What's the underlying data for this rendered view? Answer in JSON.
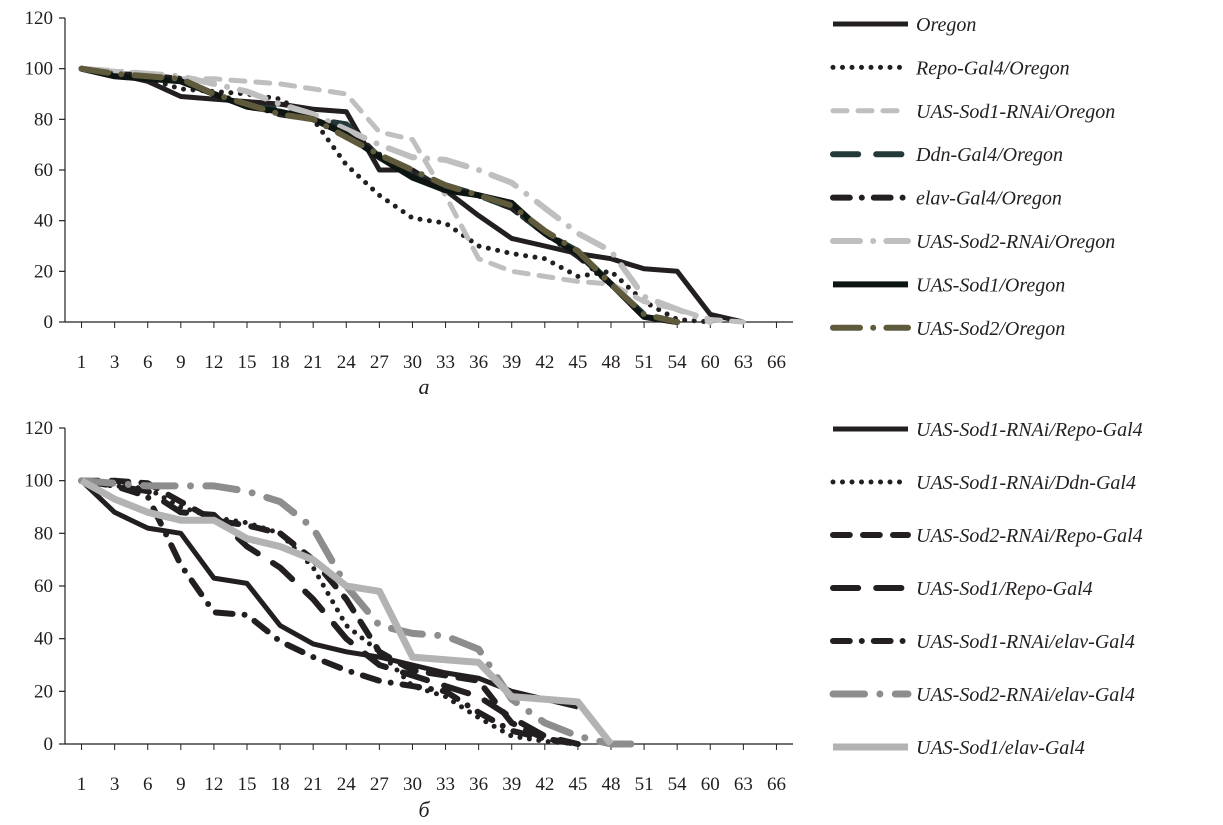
{
  "chart_data": [
    {
      "type": "line",
      "panel_label": "а",
      "x": [
        1,
        3,
        6,
        9,
        12,
        15,
        18,
        21,
        24,
        27,
        30,
        33,
        36,
        39,
        42,
        45,
        48,
        51,
        54,
        60,
        63,
        66
      ],
      "ylim": [
        0,
        120
      ],
      "yticks": [
        0,
        20,
        40,
        60,
        80,
        100,
        120
      ],
      "legend_position": "right",
      "series": [
        {
          "name": "Oregon",
          "color": "#231f20",
          "dash": "solid",
          "width": 5,
          "values": [
            100,
            98,
            95,
            89,
            88,
            87,
            86,
            84,
            83,
            60,
            60,
            52,
            42,
            33,
            30,
            27,
            25,
            21,
            20,
            3,
            0,
            null
          ]
        },
        {
          "name": "Repo-Gal4/Oregon",
          "color": "#231f20",
          "dash": "dot",
          "width": 5,
          "values": [
            100,
            97,
            96,
            92,
            91,
            90,
            88,
            80,
            62,
            50,
            41,
            39,
            30,
            27,
            25,
            18,
            20,
            8,
            1,
            0,
            null,
            null
          ]
        },
        {
          "name": "UAS-Sod1-RNAi/Oregon",
          "color": "#c0bfbf",
          "dash": "dash",
          "width": 5,
          "values": [
            100,
            99,
            98,
            96,
            96,
            95,
            94,
            92,
            90,
            75,
            72,
            50,
            25,
            20,
            18,
            16,
            15,
            8,
            5,
            1,
            0,
            null
          ]
        },
        {
          "name": "Ddn-Gal4/Oregon",
          "color": "#233a3a",
          "dash": "longdash",
          "width": 6,
          "values": [
            100,
            98,
            97,
            95,
            90,
            85,
            84,
            80,
            78,
            65,
            58,
            54,
            50,
            45,
            35,
            28,
            15,
            3,
            0,
            null,
            null,
            null
          ]
        },
        {
          "name": "elav-Gal4/Oregon",
          "color": "#231f20",
          "dash": "dashdot",
          "width": 6,
          "values": [
            100,
            98,
            97,
            96,
            90,
            86,
            82,
            80,
            75,
            66,
            58,
            53,
            50,
            45,
            35,
            26,
            15,
            2,
            0,
            null,
            null,
            null
          ]
        },
        {
          "name": "UAS-Sod2-RNAi/Oregon",
          "color": "#c0bfbf",
          "dash": "longdashdot",
          "width": 6,
          "values": [
            100,
            99,
            98,
            97,
            94,
            91,
            86,
            82,
            76,
            70,
            65,
            64,
            60,
            55,
            45,
            35,
            28,
            10,
            5,
            0,
            null,
            null
          ]
        },
        {
          "name": "UAS-Sod1/Oregon",
          "color": "#0d1512",
          "dash": "solid",
          "width": 6,
          "values": [
            100,
            97,
            96,
            95,
            90,
            85,
            83,
            80,
            74,
            65,
            57,
            52,
            50,
            47,
            35,
            27,
            15,
            2,
            0,
            null,
            null,
            null
          ]
        },
        {
          "name": "UAS-Sod2/Oregon",
          "color": "#5f5a3b",
          "dash": "longdashdot",
          "width": 6,
          "values": [
            100,
            98,
            97,
            96,
            90,
            86,
            82,
            80,
            73,
            66,
            60,
            54,
            50,
            46,
            36,
            28,
            15,
            3,
            0,
            null,
            null,
            null
          ]
        }
      ]
    },
    {
      "type": "line",
      "panel_label": "б",
      "x": [
        1,
        3,
        6,
        9,
        12,
        15,
        18,
        21,
        24,
        27,
        30,
        33,
        36,
        39,
        42,
        45,
        48,
        51,
        54,
        60,
        63,
        66
      ],
      "ylim": [
        0,
        120
      ],
      "yticks": [
        0,
        20,
        40,
        60,
        80,
        100,
        120
      ],
      "legend_position": "right",
      "series": [
        {
          "name": "UAS-Sod1-RNAi/Repo-Gal4",
          "color": "#231f20",
          "dash": "solid",
          "width": 5,
          "values": [
            100,
            88,
            82,
            80,
            63,
            61,
            45,
            38,
            35,
            33,
            30,
            27,
            25,
            20,
            17,
            14,
            null,
            null,
            null,
            null,
            null,
            null
          ]
        },
        {
          "name": "UAS-Sod1-RNAi/Ddn-Gal4",
          "color": "#231f20",
          "dash": "dot",
          "width": 5,
          "values": [
            100,
            98,
            97,
            90,
            86,
            84,
            80,
            67,
            45,
            35,
            22,
            18,
            10,
            3,
            1,
            0,
            null,
            null,
            null,
            null,
            null,
            null
          ]
        },
        {
          "name": "UAS-Sod2-RNAi/Repo-Gal4",
          "color": "#231f20",
          "dash": "dash",
          "width": 6,
          "values": [
            100,
            100,
            99,
            92,
            85,
            83,
            80,
            70,
            55,
            35,
            28,
            26,
            24,
            8,
            2,
            0,
            null,
            null,
            null,
            null,
            null,
            null
          ]
        },
        {
          "name": "UAS-Sod1/Repo-Gal4",
          "color": "#231f20",
          "dash": "longdash",
          "width": 6,
          "values": [
            100,
            98,
            96,
            88,
            87,
            75,
            67,
            55,
            40,
            30,
            26,
            22,
            18,
            10,
            3,
            0,
            null,
            null,
            null,
            null,
            null,
            null
          ]
        },
        {
          "name": "UAS-Sod1-RNAi/elav-Gal4",
          "color": "#231f20",
          "dash": "dashdot",
          "width": 6,
          "values": [
            100,
            98,
            94,
            68,
            50,
            49,
            39,
            33,
            28,
            24,
            22,
            20,
            12,
            5,
            2,
            0,
            null,
            null,
            null,
            null,
            null,
            null
          ]
        },
        {
          "name": "UAS-Sod2-RNAi/elav-Gal4",
          "color": "#8e8d8d",
          "dash": "longdashdot",
          "width": 7,
          "values": [
            100,
            99,
            98,
            98,
            98,
            96,
            92,
            82,
            60,
            45,
            42,
            41,
            36,
            17,
            8,
            3,
            0,
            0,
            null,
            null,
            null,
            null
          ]
        },
        {
          "name": "UAS-Sod1/elav-Gal4",
          "color": "#b4b3b3",
          "dash": "solid",
          "width": 7,
          "values": [
            100,
            93,
            88,
            85,
            85,
            78,
            75,
            70,
            60,
            58,
            33,
            32,
            31,
            18,
            17,
            16,
            0,
            null,
            null,
            null,
            null,
            null
          ]
        }
      ]
    }
  ]
}
